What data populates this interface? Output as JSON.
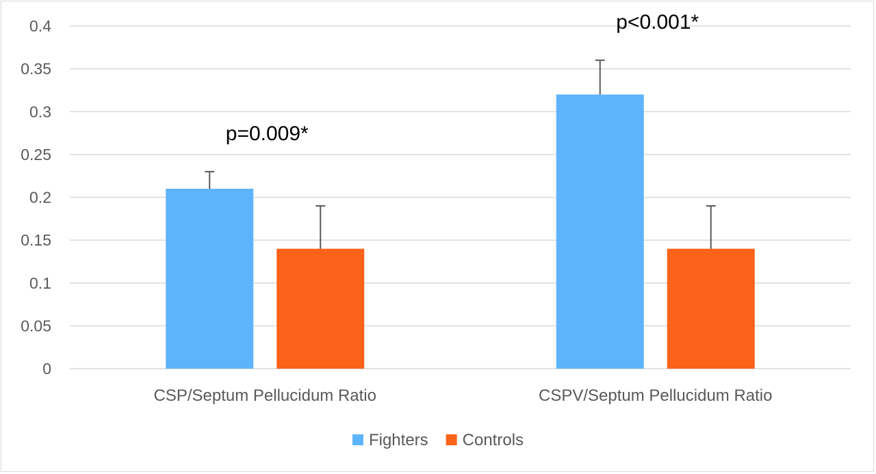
{
  "chart_data": {
    "type": "bar",
    "title": "",
    "xlabel": "",
    "ylabel": "",
    "categories": [
      "CSP/Septum Pellucidum Ratio",
      "CSPV/Septum Pellucidum Ratio"
    ],
    "series": [
      {
        "name": "Fighters",
        "color": "#5eb4fb",
        "values": [
          0.21,
          0.32
        ],
        "error_plus": [
          0.02,
          0.04
        ]
      },
      {
        "name": "Controls",
        "color": "#fa6319",
        "values": [
          0.14,
          0.14
        ],
        "error_plus": [
          0.05,
          0.05
        ]
      }
    ],
    "ylim": [
      0,
      0.4
    ],
    "yticks": [
      "0",
      "0.05",
      "0.1",
      "0.15",
      "0.2",
      "0.25",
      "0.3",
      "0.35",
      "0.4"
    ],
    "ytick_values": [
      0,
      0.05,
      0.1,
      0.15,
      0.2,
      0.25,
      0.3,
      0.35,
      0.4
    ],
    "annotations": [
      {
        "text": "p=0.009*",
        "category_index": 0
      },
      {
        "text": "p<0.001*",
        "category_index": 1
      }
    ],
    "grid": true,
    "legend": "bottom-center",
    "gridline_color": "#d9d9d9",
    "error_bar_color": "#595959"
  }
}
